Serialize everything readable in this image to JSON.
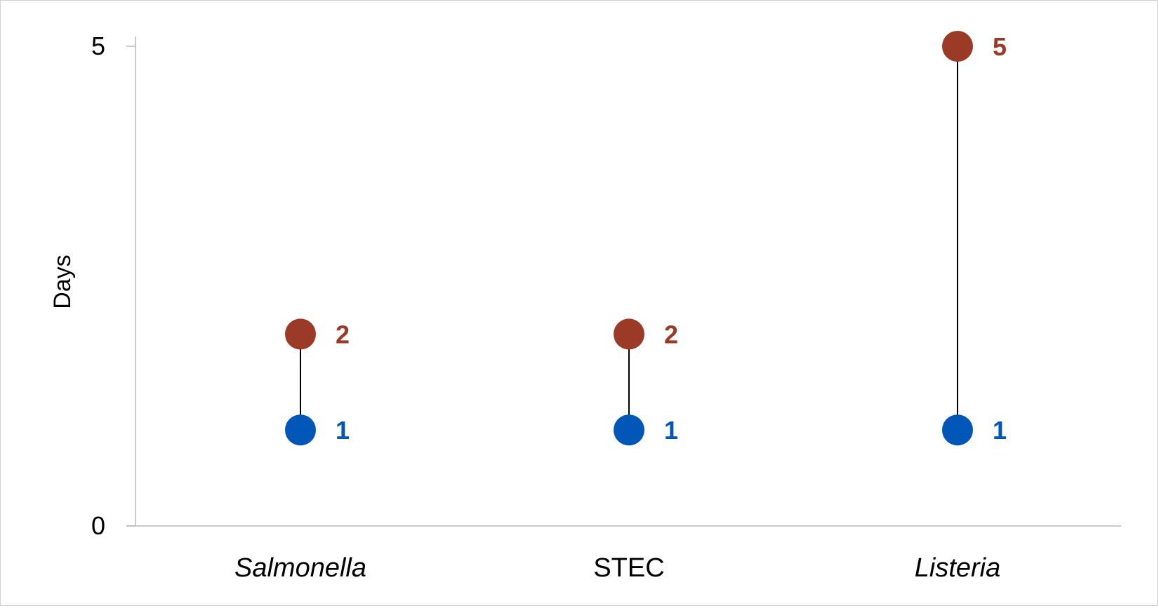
{
  "chart_data": {
    "type": "scatter",
    "subtype": "dumbbell",
    "title": "",
    "xlabel": "",
    "ylabel": "Days",
    "ylim": [
      0,
      5
    ],
    "yticks": [
      "0",
      "5"
    ],
    "grid": false,
    "legend": "none",
    "categories": [
      {
        "label": "Salmonella",
        "italic": true
      },
      {
        "label": "STEC",
        "italic": false
      },
      {
        "label": "Listeria",
        "italic": true
      }
    ],
    "series": [
      {
        "role": "low",
        "color": "#0057b7",
        "values": [
          1,
          1,
          1
        ],
        "labels": [
          "1",
          "1",
          "1"
        ]
      },
      {
        "role": "high",
        "color": "#9b3a26",
        "values": [
          2,
          2,
          5
        ],
        "labels": [
          "2",
          "2",
          "5"
        ]
      }
    ],
    "connector_color": "#000000",
    "axis_color": "#b8b8b8"
  }
}
